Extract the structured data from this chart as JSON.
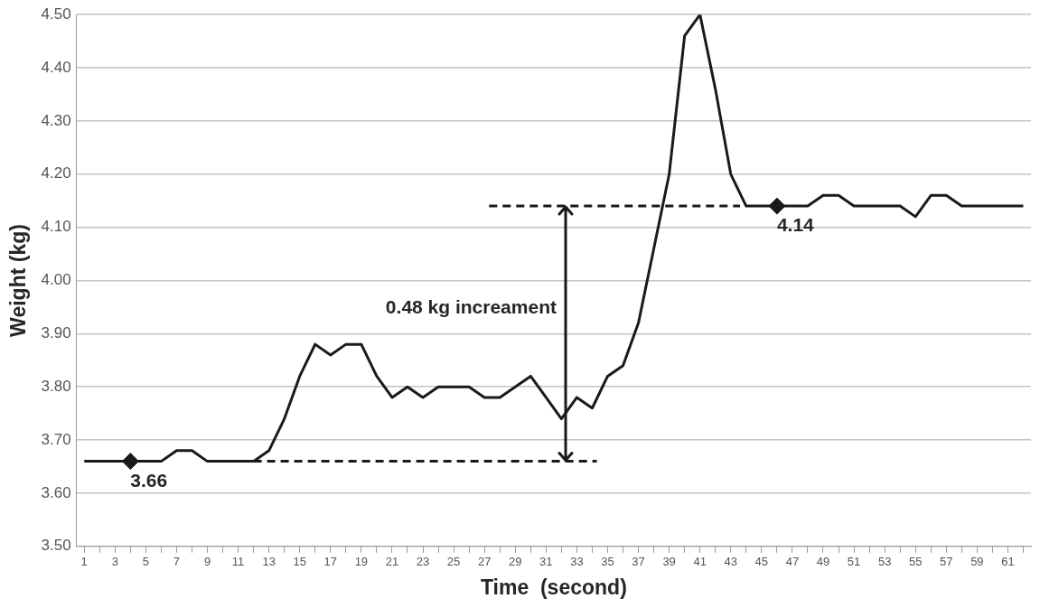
{
  "chart_data": {
    "type": "line",
    "xlabel": "Time  (second)",
    "ylabel": "Weight (kg)",
    "xlim": [
      0.5,
      62.5
    ],
    "xticks": [
      1,
      {
        "value": 2,
        "label": null
      },
      3,
      {
        "value": 4,
        "label": null
      },
      5,
      {
        "value": 6,
        "label": null
      },
      7,
      {
        "value": 8,
        "label": null
      },
      9,
      {
        "value": 10,
        "label": null
      },
      11,
      {
        "value": 12,
        "label": null
      },
      13,
      {
        "value": 14,
        "label": null
      },
      15,
      {
        "value": 16,
        "label": null
      },
      17,
      {
        "value": 18,
        "label": null
      },
      19,
      {
        "value": 20,
        "label": null
      },
      21,
      {
        "value": 22,
        "label": null
      },
      23,
      {
        "value": 24,
        "label": null
      },
      25,
      {
        "value": 26,
        "label": null
      },
      27,
      {
        "value": 28,
        "label": null
      },
      29,
      {
        "value": 30,
        "label": null
      },
      31,
      {
        "value": 32,
        "label": null
      },
      33,
      {
        "value": 34,
        "label": null
      },
      35,
      {
        "value": 36,
        "label": null
      },
      37,
      {
        "value": 38,
        "label": null
      },
      39,
      {
        "value": 40,
        "label": null
      },
      41,
      {
        "value": 42,
        "label": null
      },
      43,
      {
        "value": 44,
        "label": null
      },
      45,
      {
        "value": 46,
        "label": null
      },
      47,
      {
        "value": 48,
        "label": null
      },
      49,
      {
        "value": 50,
        "label": null
      },
      51,
      {
        "value": 52,
        "label": null
      },
      53,
      {
        "value": 54,
        "label": null
      },
      55,
      {
        "value": 56,
        "label": null
      },
      57,
      {
        "value": 58,
        "label": null
      },
      59,
      {
        "value": 60,
        "label": null
      },
      61,
      {
        "value": 62,
        "label": null
      }
    ],
    "ylim": [
      3.5,
      4.5
    ],
    "yticks": [
      {
        "value": 3.5,
        "label": "3.50"
      },
      {
        "value": 3.6,
        "label": "3.60"
      },
      {
        "value": 3.7,
        "label": "3.70"
      },
      {
        "value": 3.8,
        "label": "3.80"
      },
      {
        "value": 3.9,
        "label": "3.90"
      },
      {
        "value": 4.0,
        "label": "4.00"
      },
      {
        "value": 4.1,
        "label": "4.10"
      },
      {
        "value": 4.2,
        "label": "4.20"
      },
      {
        "value": 4.3,
        "label": "4.30"
      },
      {
        "value": 4.4,
        "label": "4.40"
      },
      {
        "value": 4.5,
        "label": "4.50"
      }
    ],
    "grid": "y",
    "legend": false,
    "series": [
      {
        "color": "#1a1a1a",
        "marker": "none",
        "line_style": "solid",
        "x": [
          1,
          2,
          3,
          4,
          5,
          6,
          7,
          8,
          9,
          10,
          11,
          12,
          13,
          14,
          15,
          16,
          17,
          18,
          19,
          20,
          21,
          22,
          23,
          24,
          25,
          26,
          27,
          28,
          29,
          30,
          31,
          32,
          33,
          34,
          35,
          36,
          37,
          38,
          39,
          40,
          41,
          42,
          43,
          44,
          45,
          46,
          47,
          48,
          49,
          50,
          51,
          52,
          53,
          54,
          55,
          56,
          57,
          58,
          59,
          60,
          61,
          62
        ],
        "values": [
          3.66,
          3.66,
          3.66,
          3.66,
          3.66,
          3.66,
          3.68,
          3.68,
          3.66,
          3.66,
          3.66,
          3.66,
          3.68,
          3.74,
          3.82,
          3.88,
          3.86,
          3.88,
          3.88,
          3.82,
          3.78,
          3.8,
          3.78,
          3.8,
          3.8,
          3.8,
          3.78,
          3.78,
          3.8,
          3.82,
          3.78,
          3.74,
          3.78,
          3.76,
          3.82,
          3.84,
          3.92,
          4.06,
          4.2,
          4.46,
          4.5,
          4.36,
          4.2,
          4.14,
          4.14,
          4.14,
          4.14,
          4.14,
          4.16,
          4.16,
          4.14,
          4.14,
          4.14,
          4.14,
          4.12,
          4.16,
          4.16,
          4.14,
          4.14,
          4.14,
          4.14,
          4.14
        ]
      },
      {
        "type": "line",
        "color": "#1a1a1a",
        "marker": "none",
        "line_style": "dashed",
        "x": [
          12,
          34.3
        ],
        "values": [
          3.66,
          3.66
        ]
      },
      {
        "type": "line",
        "color": "#1a1a1a",
        "marker": "none",
        "line_style": "dashed",
        "x": [
          27.3,
          43.6
        ],
        "values": [
          4.14,
          4.14
        ]
      },
      {
        "type": "scatter",
        "color": "#1a1a1a",
        "marker": "diamond",
        "x": [
          4,
          46
        ],
        "values": [
          3.66,
          4.14
        ]
      }
    ],
    "annotations": [
      {
        "text": "3.66",
        "x": 4,
        "y": 3.66
      },
      {
        "text": "4.14",
        "x": 46,
        "y": 4.14
      },
      "0.48 kg increament"
    ]
  }
}
